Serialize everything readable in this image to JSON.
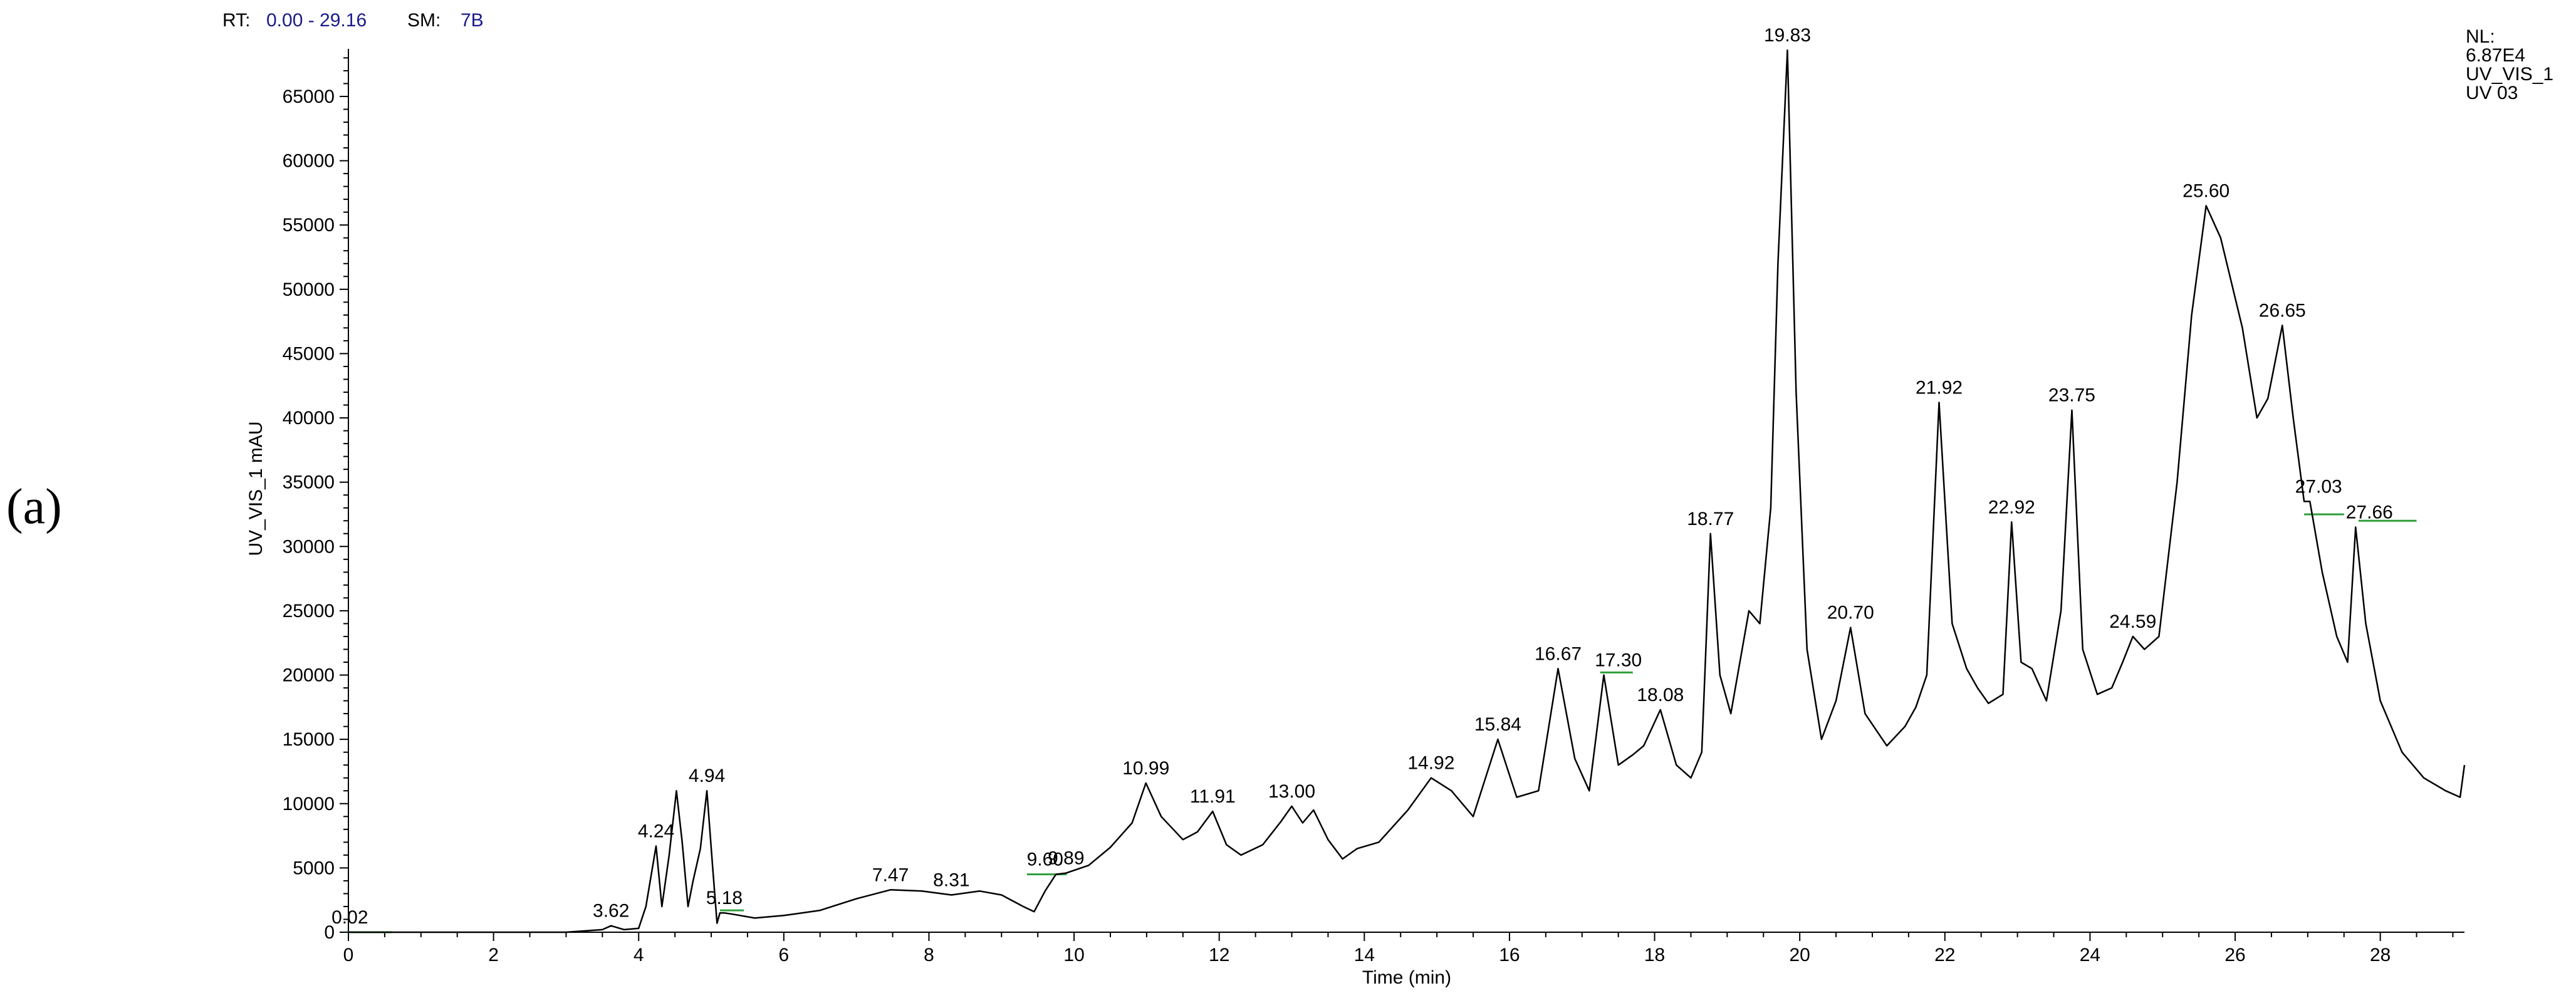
{
  "panel_label": "(a)",
  "header": {
    "rt_label": "RT:",
    "rt_value": "0.00 - 29.16",
    "sm_label": "SM:",
    "sm_value": "7B"
  },
  "info": [
    "NL:",
    "6.87E4",
    "UV_VIS_1",
    "UV 03"
  ],
  "colors": {
    "trace": "#000000",
    "baseline_marks": "#2e9e3a",
    "header_values": "#1a1a8c"
  },
  "chart_data": {
    "type": "line",
    "xlabel": "Time (min)",
    "ylabel": "UV_VIS_1 mAU",
    "xlim": [
      0,
      29.16
    ],
    "ylim": [
      0,
      68700
    ],
    "x_ticks": [
      0,
      2,
      4,
      6,
      8,
      10,
      12,
      14,
      16,
      18,
      20,
      22,
      24,
      26,
      28
    ],
    "y_ticks": [
      0,
      5000,
      10000,
      15000,
      20000,
      25000,
      30000,
      35000,
      40000,
      45000,
      50000,
      55000,
      60000,
      65000
    ],
    "series": [
      {
        "x": [
          0.0,
          0.3,
          0.6,
          1.0,
          1.5,
          2.0,
          2.5,
          3.0,
          3.5,
          3.62,
          3.8,
          4.0,
          4.1,
          4.24,
          4.32,
          4.42,
          4.52,
          4.6,
          4.68,
          4.75,
          4.85,
          4.94,
          5.02,
          5.08,
          5.12,
          5.18,
          5.3,
          5.6,
          6.0,
          6.5,
          7.0,
          7.47,
          7.9,
          8.31,
          8.7,
          9.0,
          9.3,
          9.45,
          9.6,
          9.75,
          9.89,
          10.2,
          10.5,
          10.8,
          10.99,
          11.2,
          11.5,
          11.7,
          11.91,
          12.1,
          12.3,
          12.6,
          12.85,
          13.0,
          13.15,
          13.3,
          13.5,
          13.7,
          13.9,
          14.2,
          14.6,
          14.92,
          15.2,
          15.5,
          15.84,
          16.1,
          16.4,
          16.67,
          16.9,
          17.1,
          17.3,
          17.5,
          17.7,
          17.85,
          18.08,
          18.3,
          18.5,
          18.65,
          18.77,
          18.9,
          19.05,
          19.3,
          19.45,
          19.6,
          19.7,
          19.83,
          19.95,
          20.1,
          20.3,
          20.5,
          20.7,
          20.9,
          21.2,
          21.45,
          21.6,
          21.75,
          21.92,
          22.1,
          22.3,
          22.45,
          22.6,
          22.8,
          22.92,
          23.05,
          23.2,
          23.4,
          23.6,
          23.75,
          23.9,
          24.1,
          24.3,
          24.45,
          24.59,
          24.75,
          24.95,
          25.2,
          25.4,
          25.6,
          25.8,
          26.1,
          26.3,
          26.45,
          26.65,
          26.8,
          26.95,
          27.03,
          27.2,
          27.4,
          27.55,
          27.66,
          27.8,
          28.0,
          28.3,
          28.6,
          28.9,
          29.1,
          29.16
        ],
        "y": [
          0,
          0,
          0,
          0,
          0,
          0,
          0,
          0,
          200,
          500,
          200,
          300,
          2000,
          6700,
          2000,
          6000,
          11000,
          7000,
          2000,
          4000,
          6500,
          11000,
          5000,
          700,
          1500,
          1500,
          1400,
          1100,
          1300,
          1700,
          2600,
          3300,
          3200,
          2900,
          3200,
          2900,
          2000,
          1600,
          3200,
          4500,
          4600,
          5200,
          6600,
          8500,
          11600,
          9000,
          7200,
          7800,
          9400,
          6800,
          6000,
          6800,
          8600,
          9800,
          8500,
          9500,
          7200,
          5700,
          6500,
          7000,
          9500,
          12000,
          11000,
          9000,
          15000,
          10500,
          11000,
          20500,
          13500,
          11000,
          20000,
          13000,
          13800,
          14500,
          17300,
          13000,
          12000,
          14000,
          31000,
          20000,
          17000,
          25000,
          24000,
          33000,
          52000,
          68600,
          42000,
          22000,
          15000,
          18000,
          23700,
          17000,
          14500,
          16000,
          17500,
          20000,
          41200,
          24000,
          20500,
          19000,
          17800,
          18500,
          31900,
          21000,
          20500,
          18000,
          25000,
          40600,
          22000,
          18500,
          19000,
          21000,
          23000,
          22000,
          23000,
          35000,
          48000,
          56500,
          54000,
          47000,
          40000,
          41500,
          47200,
          40000,
          33500,
          33500,
          28000,
          23000,
          21000,
          31500,
          24000,
          18000,
          14000,
          12000,
          11000,
          10500,
          13000
        ]
      }
    ],
    "peak_labels": [
      {
        "text": "0.02",
        "x": 0.02,
        "y": 0
      },
      {
        "text": "3.62",
        "x": 3.62,
        "y": 500
      },
      {
        "text": "4.24",
        "x": 4.24,
        "y": 6700
      },
      {
        "text": "4.94",
        "x": 4.94,
        "y": 11000
      },
      {
        "text": "5.18",
        "x": 5.18,
        "y": 1500
      },
      {
        "text": "7.47",
        "x": 7.47,
        "y": 3300
      },
      {
        "text": "8.31",
        "x": 8.31,
        "y": 2900
      },
      {
        "text": "9.60",
        "x": 9.6,
        "y": 4500
      },
      {
        "text": "9.89",
        "x": 9.89,
        "y": 4600
      },
      {
        "text": "10.99",
        "x": 10.99,
        "y": 11600
      },
      {
        "text": "11.91",
        "x": 11.91,
        "y": 9400
      },
      {
        "text": "13.00",
        "x": 13.0,
        "y": 9800
      },
      {
        "text": "14.92",
        "x": 14.92,
        "y": 12000
      },
      {
        "text": "15.84",
        "x": 15.84,
        "y": 15000
      },
      {
        "text": "16.67",
        "x": 16.67,
        "y": 20500
      },
      {
        "text": "17.30",
        "x": 17.5,
        "y": 20000
      },
      {
        "text": "18.08",
        "x": 18.08,
        "y": 17300
      },
      {
        "text": "18.77",
        "x": 18.77,
        "y": 31000
      },
      {
        "text": "19.83",
        "x": 19.83,
        "y": 68600
      },
      {
        "text": "20.70",
        "x": 20.7,
        "y": 23700
      },
      {
        "text": "21.92",
        "x": 21.92,
        "y": 41200
      },
      {
        "text": "22.92",
        "x": 22.92,
        "y": 31900
      },
      {
        "text": "23.75",
        "x": 23.75,
        "y": 40600
      },
      {
        "text": "24.59",
        "x": 24.59,
        "y": 23000
      },
      {
        "text": "25.60",
        "x": 25.6,
        "y": 56500
      },
      {
        "text": "26.65",
        "x": 26.65,
        "y": 47200
      },
      {
        "text": "27.03",
        "x": 27.15,
        "y": 33500
      },
      {
        "text": "27.66",
        "x": 27.85,
        "y": 31500
      }
    ],
    "baseline_marks": [
      {
        "x0": 0.0,
        "x1": 0.6,
        "y": 0
      },
      {
        "x0": 5.12,
        "x1": 5.45,
        "y": 1700
      },
      {
        "x0": 9.35,
        "x1": 9.9,
        "y": 4500
      },
      {
        "x0": 17.25,
        "x1": 17.7,
        "y": 20200
      },
      {
        "x0": 26.95,
        "x1": 27.5,
        "y": 32500
      },
      {
        "x0": 27.7,
        "x1": 28.5,
        "y": 32000
      }
    ]
  }
}
